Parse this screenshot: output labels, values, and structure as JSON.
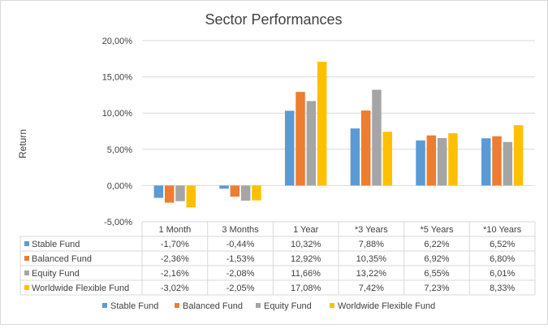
{
  "chart_data": {
    "type": "bar",
    "title": "Sector Performances",
    "ylabel": "Return",
    "xlabel": "",
    "ylim": [
      -5,
      20
    ],
    "yticks": [
      -5,
      0,
      5,
      10,
      15,
      20
    ],
    "ytick_labels": [
      "-5,00%",
      "0,00%",
      "5,00%",
      "10,00%",
      "15,00%",
      "20,00%"
    ],
    "grid": true,
    "legend_position": "bottom",
    "categories": [
      "1 Month",
      "3 Months",
      "1 Year",
      "*3 Years",
      "*5 Years",
      "*10 Years"
    ],
    "series": [
      {
        "name": "Stable Fund",
        "color": "#5B9BD5",
        "values": [
          -1.7,
          -0.44,
          10.32,
          7.88,
          6.22,
          6.52
        ],
        "labels": [
          "-1,70%",
          "-0,44%",
          "10,32%",
          "7,88%",
          "6,22%",
          "6,52%"
        ]
      },
      {
        "name": "Balanced Fund",
        "color": "#ED7D31",
        "values": [
          -2.36,
          -1.53,
          12.92,
          10.35,
          6.92,
          6.8
        ],
        "labels": [
          "-2,36%",
          "-1,53%",
          "12,92%",
          "10,35%",
          "6,92%",
          "6,80%"
        ]
      },
      {
        "name": "Equity Fund",
        "color": "#A5A5A5",
        "values": [
          -2.16,
          -2.08,
          11.66,
          13.22,
          6.55,
          6.01
        ],
        "labels": [
          "-2,16%",
          "-2,08%",
          "11,66%",
          "13,22%",
          "6,55%",
          "6,01%"
        ]
      },
      {
        "name": "Worldwide Flexible Fund",
        "color": "#FFC000",
        "values": [
          -3.02,
          -2.05,
          17.08,
          7.42,
          7.23,
          8.33
        ],
        "labels": [
          "-3,02%",
          "-2,05%",
          "17,08%",
          "7,42%",
          "7,23%",
          "8,33%"
        ]
      }
    ]
  }
}
